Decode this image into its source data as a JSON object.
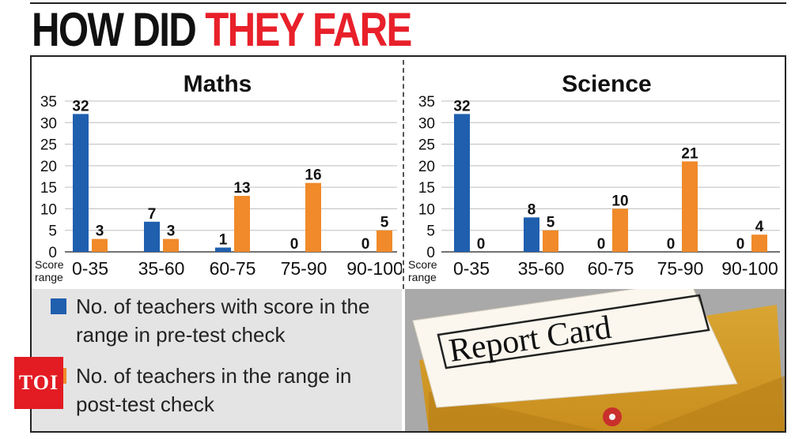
{
  "header": {
    "title_part1": "HOW DID",
    "title_part2": "THEY FARE"
  },
  "colors": {
    "pre_test": "#1f5fae",
    "post_test": "#f08a2a",
    "accent_red": "#e8202a"
  },
  "chart_data": [
    {
      "type": "bar",
      "title": "Maths",
      "categories": [
        "0-35",
        "35-60",
        "60-75",
        "75-90",
        "90-100"
      ],
      "xlabel": "Score range",
      "ylim": [
        0,
        35
      ],
      "yticks": [
        0,
        5,
        10,
        15,
        20,
        25,
        30,
        35
      ],
      "series": [
        {
          "name": "No. of teachers with score in the range in pre-test check",
          "values": [
            32,
            7,
            1,
            0,
            0
          ]
        },
        {
          "name": "No. of teachers in the range in post-test check",
          "values": [
            3,
            3,
            13,
            16,
            5
          ]
        }
      ]
    },
    {
      "type": "bar",
      "title": "Science",
      "categories": [
        "0-35",
        "35-60",
        "60-75",
        "75-90",
        "90-100"
      ],
      "xlabel": "Score range",
      "ylim": [
        0,
        35
      ],
      "yticks": [
        0,
        5,
        10,
        15,
        20,
        25,
        30,
        35
      ],
      "series": [
        {
          "name": "No. of teachers with score in the range in pre-test check",
          "values": [
            32,
            8,
            0,
            0,
            0
          ]
        },
        {
          "name": "No. of teachers in the range in post-test check",
          "values": [
            0,
            5,
            10,
            21,
            4
          ]
        }
      ]
    }
  ],
  "legend": {
    "pre_test": "No. of teachers with score in the range in pre-test check",
    "post_test": "No. of teachers in the range in post-test check"
  },
  "logo": {
    "text": "TOI"
  },
  "illustration": {
    "card_text": "Report Card"
  }
}
